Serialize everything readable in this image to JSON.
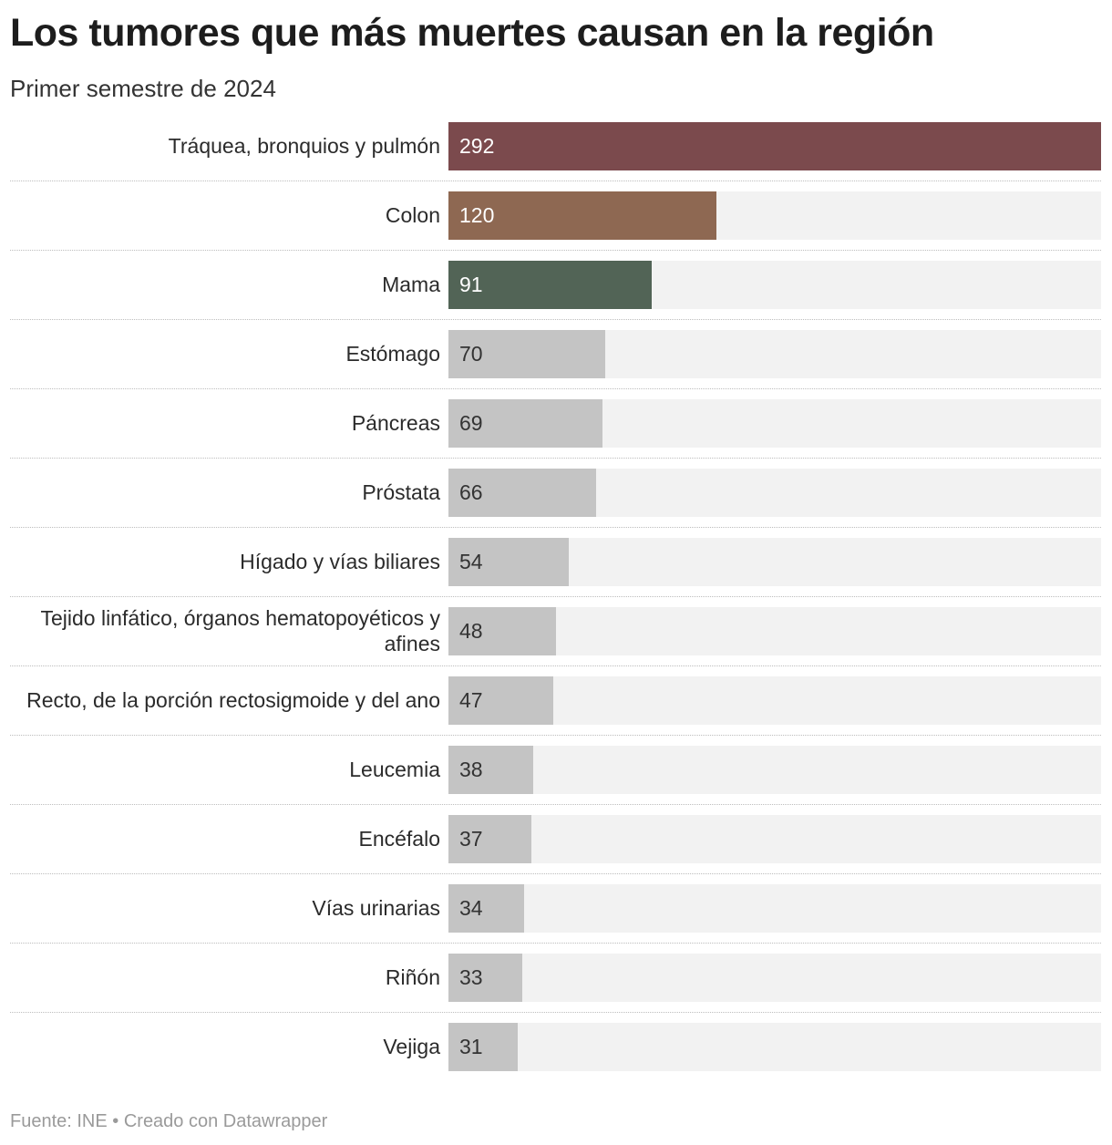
{
  "header": {
    "title": "Los tumores que más muertes causan en la región",
    "subtitle": "Primer semestre de 2024"
  },
  "footer": {
    "source": "Fuente: INE • Creado con Datawrapper"
  },
  "chart_data": {
    "type": "bar",
    "orientation": "horizontal",
    "title": "Los tumores que más muertes causan en la región",
    "subtitle": "Primer semestre de 2024",
    "xlim": [
      0,
      292
    ],
    "grid": false,
    "legend": "none",
    "data_labels": "inside-left",
    "categories": [
      "Tráquea, bronquios y pulmón",
      "Colon",
      "Mama",
      "Estómago",
      "Páncreas",
      "Próstata",
      "Hígado y vías biliares",
      "Tejido linfático, órganos hematopoyéticos y afines",
      "Recto, de la porción rectosigmoide y del ano",
      "Leucemia",
      "Encéfalo",
      "Vías urinarias",
      "Riñón",
      "Vejiga"
    ],
    "values": [
      292,
      120,
      91,
      70,
      69,
      66,
      54,
      48,
      47,
      38,
      37,
      34,
      33,
      31
    ],
    "colors": [
      "#7b4a4d",
      "#8e6852",
      "#526456",
      "#c4c4c4",
      "#c4c4c4",
      "#c4c4c4",
      "#c4c4c4",
      "#c4c4c4",
      "#c4c4c4",
      "#c4c4c4",
      "#c4c4c4",
      "#c4c4c4",
      "#c4c4c4",
      "#c4c4c4"
    ],
    "track_color": "#f2f2f2",
    "label_colors": {
      "highlight": "#ffffff",
      "default": "#333333"
    }
  }
}
